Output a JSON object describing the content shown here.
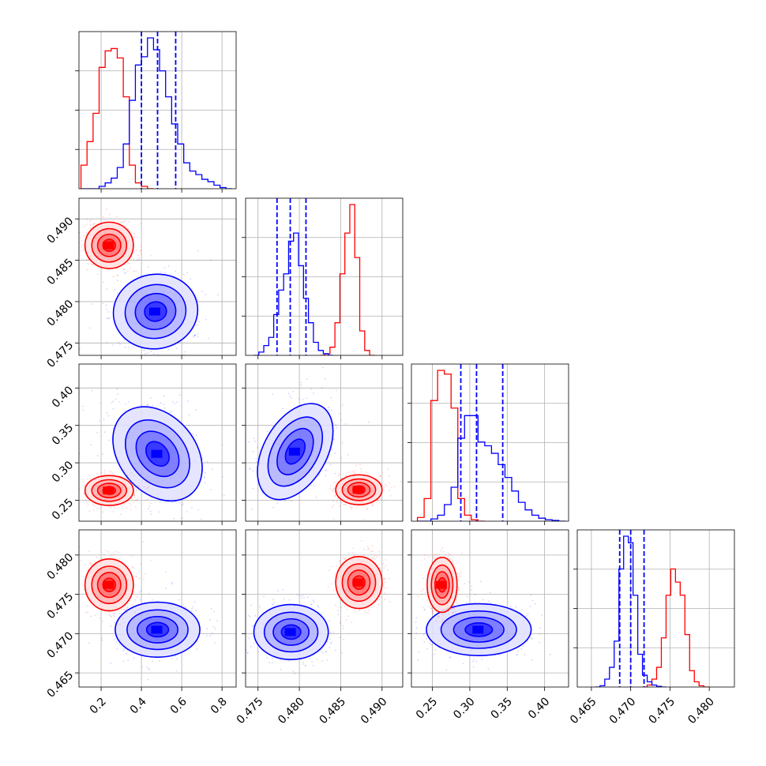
{
  "chart_data": {
    "type": "corner",
    "colors": {
      "model_a": "#0000ff",
      "model_b": "#ff0000"
    },
    "grid": true,
    "legend": "none",
    "parameters": [
      {
        "range": [
          0.09,
          0.87
        ],
        "ticks": [
          0.2,
          0.4,
          0.6,
          0.8
        ],
        "tick_labels": [
          "0.2",
          "0.4",
          "0.6",
          "0.8"
        ]
      },
      {
        "range": [
          0.4735,
          0.4925
        ],
        "ticks": [
          0.475,
          0.48,
          0.485,
          0.49
        ],
        "tick_labels": [
          "0.475",
          "0.480",
          "0.485",
          "0.490"
        ]
      },
      {
        "range": [
          0.222,
          0.432
        ],
        "ticks": [
          0.25,
          0.3,
          0.35,
          0.4
        ],
        "tick_labels": [
          "0.25",
          "0.30",
          "0.35",
          "0.40"
        ]
      },
      {
        "range": [
          0.4632,
          0.4832
        ],
        "ticks": [
          0.465,
          0.47,
          0.475,
          0.48
        ],
        "tick_labels": [
          "0.465",
          "0.470",
          "0.475",
          "0.480"
        ]
      }
    ],
    "blue_quantiles": [
      [
        0.4,
        0.48,
        0.57
      ],
      [
        0.4773,
        0.4789,
        0.4808
      ],
      [
        0.288,
        0.309,
        0.344
      ],
      [
        0.4686,
        0.47,
        0.4717
      ]
    ],
    "histograms": [
      {
        "param": 0,
        "blue": {
          "start": 0.1,
          "step": 0.03,
          "counts": [
            0,
            0,
            0,
            2,
            5,
            9,
            18,
            38,
            75,
            105,
            112,
            128,
            118,
            100,
            78,
            55,
            38,
            22,
            15,
            12,
            8,
            6,
            3,
            1,
            0
          ]
        },
        "red": {
          "start": 0.1,
          "step": 0.03,
          "counts": [
            20,
            40,
            64,
            103,
            117,
            119,
            111,
            78,
            20,
            5,
            2,
            0
          ]
        }
      },
      {
        "param": 1,
        "blue": {
          "start": 0.4745,
          "step": 0.0006,
          "counts": [
            0,
            4,
            12,
            22,
            50,
            80,
            100,
            140,
            150,
            110,
            70,
            40,
            16,
            6,
            2,
            0
          ]
        },
        "red": {
          "start": 0.4825,
          "step": 0.0006,
          "counts": [
            0,
            2,
            10,
            40,
            100,
            150,
            185,
            120,
            30,
            6,
            0
          ]
        }
      },
      {
        "param": 2,
        "blue": {
          "start": 0.23,
          "step": 0.009,
          "counts": [
            0,
            0,
            3,
            8,
            22,
            45,
            110,
            140,
            140,
            105,
            100,
            90,
            75,
            58,
            40,
            25,
            15,
            8,
            4,
            2,
            1,
            0
          ]
        },
        "red": {
          "start": 0.23,
          "step": 0.009,
          "counts": [
            5,
            30,
            160,
            200,
            195,
            150,
            30,
            8,
            2,
            0
          ]
        }
      },
      {
        "param": 3,
        "blue": {
          "start": 0.4655,
          "step": 0.0006,
          "counts": [
            0,
            2,
            12,
            30,
            70,
            180,
            230,
            220,
            140,
            50,
            18,
            8,
            3,
            1,
            0
          ]
        },
        "red": {
          "start": 0.4715,
          "step": 0.0006,
          "counts": [
            0,
            3,
            12,
            30,
            75,
            140,
            180,
            160,
            140,
            80,
            25,
            8,
            2,
            0
          ]
        }
      }
    ],
    "blobs": [
      {
        "x": 0,
        "y": 1,
        "blue": {
          "cx": 0.47,
          "cy": 0.4788,
          "rx": 0.21,
          "ry": 0.0045,
          "rot": -10
        },
        "red": {
          "cx": 0.24,
          "cy": 0.4868,
          "rx": 0.12,
          "ry": 0.0028,
          "rot": 0
        }
      },
      {
        "x": 0,
        "y": 2,
        "blue": {
          "cx": 0.48,
          "cy": 0.312,
          "rx": 0.19,
          "ry": 0.07,
          "rot": -40
        },
        "red": {
          "cx": 0.24,
          "cy": 0.263,
          "rx": 0.12,
          "ry": 0.02,
          "rot": 0
        }
      },
      {
        "x": 1,
        "y": 2,
        "blue": {
          "cx": 0.4795,
          "cy": 0.315,
          "rx": 0.0038,
          "ry": 0.07,
          "rot": 30
        },
        "red": {
          "cx": 0.4872,
          "cy": 0.264,
          "rx": 0.0028,
          "ry": 0.02,
          "rot": 0
        }
      },
      {
        "x": 0,
        "y": 3,
        "blue": {
          "cx": 0.48,
          "cy": 0.4705,
          "rx": 0.21,
          "ry": 0.0035,
          "rot": 0
        },
        "red": {
          "cx": 0.24,
          "cy": 0.4762,
          "rx": 0.12,
          "ry": 0.0033,
          "rot": 0
        }
      },
      {
        "x": 1,
        "y": 3,
        "blue": {
          "cx": 0.479,
          "cy": 0.4702,
          "rx": 0.0045,
          "ry": 0.0035,
          "rot": 0
        },
        "red": {
          "cx": 0.4872,
          "cy": 0.4765,
          "rx": 0.0028,
          "ry": 0.0033,
          "rot": 0
        }
      },
      {
        "x": 2,
        "y": 3,
        "blue": {
          "cx": 0.312,
          "cy": 0.4705,
          "rx": 0.07,
          "ry": 0.0033,
          "rot": 0
        },
        "red": {
          "cx": 0.263,
          "cy": 0.4762,
          "rx": 0.02,
          "ry": 0.0035,
          "rot": 0
        }
      }
    ]
  }
}
